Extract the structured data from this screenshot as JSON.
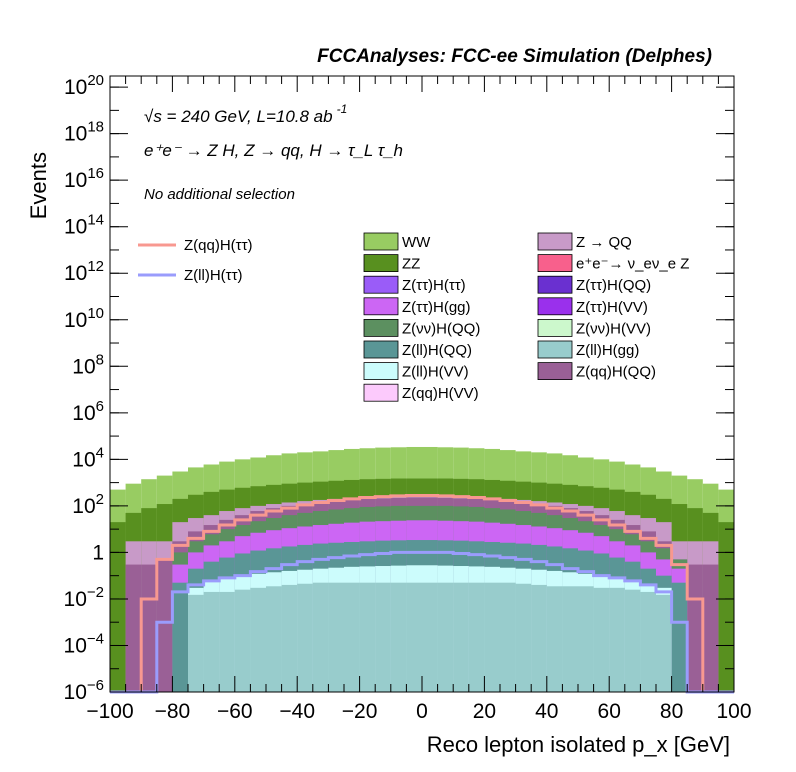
{
  "header_title": "FCCAnalyses: FCC-ee Simulation (Delphes)",
  "annotations": {
    "energy": "√s = 240 GeV, L=10.8 ab",
    "energy_exp": "-1",
    "process": "e⁺e⁻ → Z H, Z → qq, H → τ_L τ_h",
    "selection": "No additional selection"
  },
  "colors": {
    "WW": "#98cc62",
    "ZZ": "#58901f",
    "Z_QQ": "#c89ac8",
    "ee_nunu_Z": "#f8608c",
    "Z_tautau_H_tautau": "#9a5cf8",
    "Z_tautau_H_QQ": "#6a30d0",
    "Z_tautau_H_gg": "#cc66f4",
    "Z_tautau_H_VV": "#9a30ec",
    "Z_nunu_H_QQ": "#5c9060",
    "Z_nunu_H_VV": "#ccf8cc",
    "Z_ll_H_QQ": "#5a9696",
    "Z_ll_H_gg": "#98cccc",
    "Z_ll_H_VV": "#ccfcfc",
    "Z_qq_H_QQ": "#9a6096",
    "Z_qq_H_VV": "#fccafc",
    "signal_qq": "#f89890",
    "signal_ll": "#9a9cfc"
  },
  "chart_data": {
    "type": "histogram",
    "stacked": true,
    "log_y": true,
    "xlabel": "Reco lepton isolated p_x [GeV]",
    "ylabel": "Events",
    "xlim": [
      -100,
      100
    ],
    "ylim": [
      1e-06,
      3e+20
    ],
    "bin_edges_start": -100,
    "bin_width": 5,
    "x_ticks": [
      -100,
      -80,
      -60,
      -40,
      -20,
      0,
      20,
      40,
      60,
      80,
      100
    ],
    "x_tick_labels": [
      "−100",
      "−80",
      "−60",
      "−40",
      "−20",
      "0",
      "20",
      "40",
      "60",
      "80",
      "100"
    ],
    "y_ticks": [
      1e-06,
      0.0001,
      0.01,
      1,
      100.0,
      10000.0,
      1000000.0,
      100000000.0,
      10000000000.0,
      1000000000000.0,
      100000000000000.0,
      1e+16,
      1e+18,
      1e+20
    ],
    "grid": false,
    "legend_position": "top",
    "legend_entries": [
      "Z(qq)H(ττ)",
      "Z(ll)H(ττ)",
      "WW",
      "Z → QQ",
      "ZZ",
      "e⁺e⁻→ ν_eν_e Z",
      "Z(ττ)H(ττ)",
      "Z(ττ)H(QQ)",
      "Z(ττ)H(gg)",
      "Z(ττ)H(VV)",
      "Z(νν)H(QQ)",
      "Z(νν)H(VV)",
      "Z(ll)H(QQ)",
      "Z(ll)H(gg)",
      "Z(ll)H(VV)",
      "Z(qq)H(QQ)",
      "Z(qq)H(VV)"
    ],
    "stack_bin_tops": [
      {
        "name": "Z(ll)H(gg)",
        "color_key": "Z_ll_H_gg",
        "values": [
          1e-06,
          1e-06,
          1e-06,
          1e-06,
          1e-06,
          0.015,
          0.02,
          0.02,
          0.025,
          0.03,
          0.035,
          0.04,
          0.045,
          0.05,
          0.05,
          0.05,
          0.05,
          0.05,
          0.05,
          0.05,
          0.05,
          0.05,
          0.05,
          0.05,
          0.05,
          0.05,
          0.045,
          0.04,
          0.035,
          0.035,
          0.035,
          0.03,
          0.03,
          0.025,
          0.02,
          0.015,
          1e-06,
          1e-06,
          1e-06,
          1e-06
        ]
      },
      {
        "name": "Z(ll)H(VV)",
        "color_key": "Z_ll_H_VV",
        "values": [
          1e-06,
          1e-06,
          1e-06,
          1e-06,
          1e-06,
          0.03,
          0.06,
          0.08,
          0.1,
          0.12,
          0.14,
          0.16,
          0.18,
          0.2,
          0.22,
          0.24,
          0.25,
          0.26,
          0.27,
          0.28,
          0.28,
          0.27,
          0.26,
          0.25,
          0.24,
          0.22,
          0.2,
          0.18,
          0.16,
          0.14,
          0.12,
          0.1,
          0.08,
          0.06,
          0.04,
          0.03,
          1e-06,
          1e-06,
          1e-06,
          1e-06
        ]
      },
      {
        "name": "Z(ll)H(QQ)",
        "color_key": "Z_ll_H_QQ",
        "values": [
          1e-06,
          1e-06,
          1e-06,
          1e-06,
          0.05,
          0.2,
          0.4,
          0.6,
          0.9,
          1.2,
          1.5,
          1.8,
          2.1,
          2.4,
          2.6,
          2.8,
          3,
          3.2,
          3.3,
          3.4,
          3.4,
          3.3,
          3.2,
          3,
          2.8,
          2.6,
          2.4,
          2.1,
          1.8,
          1.5,
          1.2,
          0.9,
          0.6,
          0.4,
          0.2,
          0.1,
          0.05,
          1e-06,
          1e-06,
          1e-06
        ]
      },
      {
        "name": "Z(ττ)H(gg)",
        "color_key": "Z_tautau_H_gg",
        "values": [
          1e-06,
          1e-06,
          1e-06,
          1e-06,
          0.3,
          1,
          2,
          3,
          5,
          7,
          9,
          11,
          13,
          15,
          17,
          19,
          21,
          22,
          23,
          24,
          24,
          23,
          22,
          21,
          19,
          17,
          15,
          13,
          11,
          9,
          7,
          5,
          3,
          2,
          1,
          0.5,
          0.2,
          1e-06,
          1e-06,
          1e-06
        ]
      },
      {
        "name": "Z(νν)H(QQ)",
        "color_key": "Z_nunu_H_QQ",
        "values": [
          1e-06,
          1e-06,
          1e-06,
          1e-06,
          1,
          3,
          6,
          10,
          15,
          22,
          30,
          40,
          50,
          60,
          70,
          80,
          90,
          95,
          100,
          100,
          100,
          100,
          95,
          90,
          80,
          70,
          60,
          50,
          40,
          30,
          22,
          15,
          10,
          6,
          3,
          1.5,
          0.5,
          1e-06,
          1e-06,
          1e-06
        ]
      },
      {
        "name": "Z(qq)H(QQ)",
        "color_key": "Z_qq_H_QQ",
        "values": [
          1e-06,
          0.3,
          0.3,
          0.5,
          3,
          8,
          15,
          25,
          40,
          60,
          80,
          100,
          120,
          140,
          160,
          180,
          200,
          210,
          220,
          230,
          230,
          220,
          210,
          200,
          180,
          160,
          140,
          120,
          100,
          80,
          60,
          40,
          25,
          15,
          8,
          3,
          0.5,
          0.3,
          0.3,
          1e-06
        ]
      },
      {
        "name": "Z → QQ",
        "color_key": "Z_QQ",
        "values": [
          1e-06,
          3,
          3,
          3,
          20,
          30,
          40,
          60,
          80,
          100,
          120,
          140,
          160,
          180,
          200,
          220,
          240,
          250,
          260,
          270,
          270,
          260,
          250,
          240,
          220,
          200,
          180,
          160,
          140,
          120,
          100,
          80,
          60,
          40,
          30,
          20,
          3,
          3,
          3,
          1e-06
        ]
      },
      {
        "name": "ZZ",
        "color_key": "ZZ",
        "values": [
          20,
          50,
          80,
          120,
          200,
          300,
          400,
          500,
          600,
          700,
          800,
          900,
          1000,
          1100,
          1200,
          1300,
          1400,
          1450,
          1500,
          1500,
          1500,
          1500,
          1450,
          1400,
          1300,
          1200,
          1100,
          1000,
          900,
          800,
          700,
          600,
          500,
          400,
          300,
          200,
          120,
          80,
          50,
          20
        ]
      },
      {
        "name": "WW",
        "color_key": "WW",
        "values": [
          500,
          900,
          1400,
          2000,
          3000,
          4500,
          6000,
          8000,
          10000,
          12000,
          15000,
          18000,
          20000,
          22000,
          25000,
          28000,
          30000,
          32000,
          33000,
          34000,
          34000,
          33000,
          32000,
          30000,
          28000,
          25000,
          22000,
          20000,
          18000,
          15000,
          12000,
          10000,
          8000,
          6000,
          4500,
          3000,
          2000,
          1400,
          900,
          500
        ]
      }
    ],
    "overlay_series": [
      {
        "name": "Z(qq)H(ττ)",
        "color_key": "signal_qq",
        "values": [
          1e-06,
          1e-06,
          0.01,
          0.5,
          2,
          4,
          8,
          15,
          25,
          40,
          60,
          80,
          110,
          140,
          170,
          200,
          230,
          250,
          270,
          280,
          280,
          270,
          250,
          230,
          200,
          170,
          140,
          110,
          80,
          60,
          40,
          25,
          15,
          8,
          4,
          2,
          0.3,
          0.01,
          1e-06,
          1e-06
        ]
      },
      {
        "name": "Z(ll)H(ττ)",
        "color_key": "signal_ll",
        "values": [
          1e-06,
          1e-06,
          1e-06,
          0.001,
          0.02,
          0.04,
          0.06,
          0.08,
          0.1,
          0.15,
          0.2,
          0.3,
          0.4,
          0.5,
          0.6,
          0.7,
          0.8,
          0.9,
          1,
          1,
          1,
          1,
          0.9,
          0.8,
          0.7,
          0.6,
          0.5,
          0.4,
          0.3,
          0.2,
          0.15,
          0.1,
          0.08,
          0.06,
          0.04,
          0.02,
          0.001,
          1e-06,
          1e-06,
          1e-06
        ]
      }
    ]
  }
}
